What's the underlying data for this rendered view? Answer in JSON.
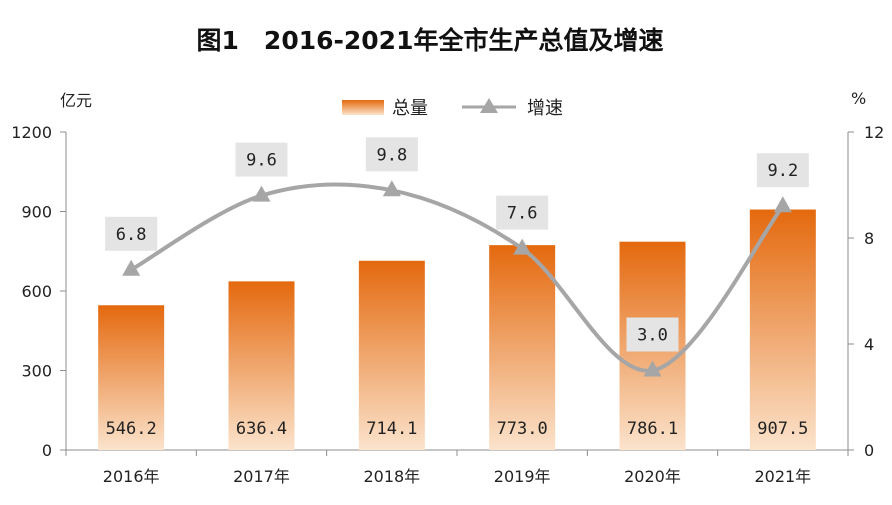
{
  "chart_data": {
    "type": "bar",
    "title": "图1　2016-2021年全市生产总值及增速",
    "categories": [
      "2016年",
      "2017年",
      "2018年",
      "2019年",
      "2020年",
      "2021年"
    ],
    "series": [
      {
        "name": "总量",
        "type": "bar",
        "axis": "left",
        "values": [
          546.2,
          636.4,
          714.1,
          773.0,
          786.1,
          907.5
        ],
        "labels": [
          "546.2",
          "636.4",
          "714.1",
          "773.0",
          "786.1",
          "907.5"
        ]
      },
      {
        "name": "增速",
        "type": "line",
        "axis": "right",
        "values": [
          6.8,
          9.6,
          9.8,
          7.6,
          3.0,
          9.2
        ],
        "labels": [
          "6.8",
          "9.6",
          "9.8",
          "7.6",
          "3.0",
          "9.2"
        ]
      }
    ],
    "left_axis": {
      "unit": "亿元",
      "ylim": [
        0,
        1200
      ],
      "ticks": [
        "0",
        "300",
        "600",
        "900",
        "1200"
      ]
    },
    "right_axis": {
      "unit": "%",
      "ylim": [
        0,
        12
      ],
      "ticks": [
        "0",
        "4",
        "8",
        "12"
      ]
    },
    "legend": {
      "position": "top-center"
    },
    "colors": {
      "bar_top": "#e4690e",
      "bar_bottom": "#fbe3cc",
      "line": "#a6a6a6",
      "label_box": "#e4e4e4",
      "axis": "#8c8c8c"
    },
    "grid": false
  }
}
